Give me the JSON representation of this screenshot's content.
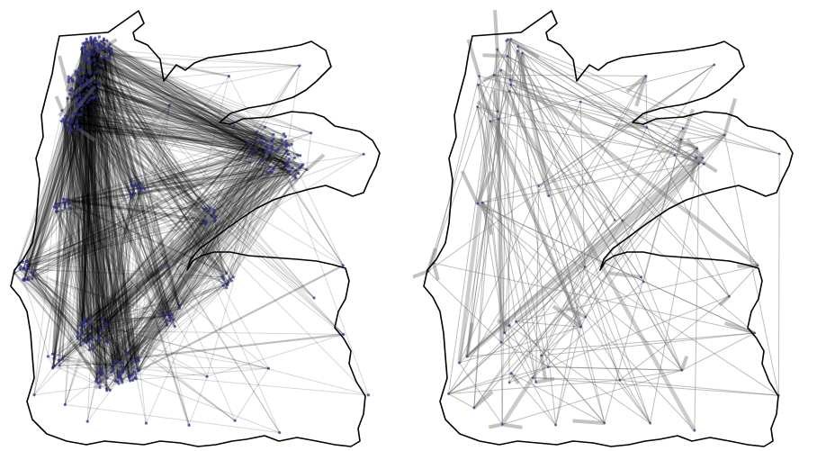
{
  "figure": {
    "panels": [
      {
        "id": "left",
        "density": "dense"
      },
      {
        "id": "right",
        "density": "sparse"
      }
    ]
  },
  "colors": {
    "background": "#ffffff",
    "outline": "#000000",
    "edge_dense": "#000000",
    "edge_sparse": "#6e6e6e",
    "node": "#2b2b8a"
  }
}
